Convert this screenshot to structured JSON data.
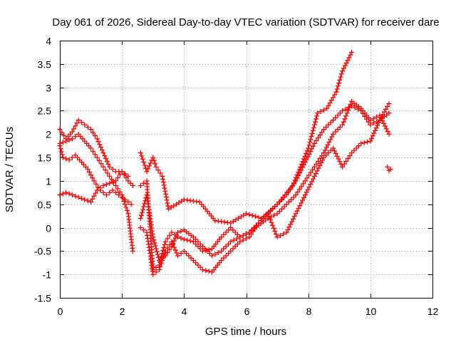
{
  "chart_data": {
    "type": "scatter",
    "title": "Day 061 of 2026, Sidereal Day-to-day VTEC variation (SDTVAR) for receiver dare",
    "xlabel": "GPS time / hours",
    "ylabel": "SDTVAR / TECUs",
    "xlim": [
      0,
      12
    ],
    "ylim": [
      -1.5,
      4
    ],
    "xticks": [
      0,
      2,
      4,
      6,
      8,
      10,
      12
    ],
    "yticks": [
      -1.5,
      -1,
      -0.5,
      0,
      0.5,
      1,
      1.5,
      2,
      2.5,
      3,
      3.5,
      4
    ],
    "grid": true,
    "marker": "+",
    "marker_color": "#ff0000",
    "series": [
      {
        "x": [
          0.0,
          0.2,
          0.4,
          0.6,
          0.8,
          1.0,
          1.2,
          1.4,
          1.6,
          1.8,
          2.0,
          2.2,
          2.35
        ],
        "y": [
          2.1,
          1.9,
          2.05,
          2.3,
          2.2,
          2.1,
          1.9,
          1.6,
          1.3,
          1.2,
          1.2,
          1.0,
          0.9
        ]
      },
      {
        "x": [
          0.0,
          0.2,
          0.4,
          0.6,
          0.8,
          1.0,
          1.2,
          1.4,
          1.6,
          1.8,
          2.0,
          2.2,
          2.35
        ],
        "y": [
          1.8,
          1.85,
          1.9,
          2.0,
          1.85,
          1.7,
          1.5,
          1.3,
          1.1,
          0.9,
          0.7,
          0.3,
          -0.5
        ]
      },
      {
        "x": [
          0.0,
          0.2,
          0.4,
          0.6,
          0.8,
          1.0,
          1.2,
          1.4,
          1.6,
          1.8,
          2.0,
          2.2
        ],
        "y": [
          0.7,
          0.75,
          0.7,
          0.65,
          0.6,
          0.55,
          0.8,
          0.9,
          0.95,
          1.0,
          1.2,
          1.1
        ]
      },
      {
        "x": [
          0.0,
          0.1,
          0.3,
          0.5,
          0.7,
          0.9,
          1.1,
          1.3,
          1.5,
          1.7,
          1.9,
          2.1,
          2.3
        ],
        "y": [
          1.75,
          1.5,
          1.45,
          1.55,
          1.4,
          1.25,
          1.0,
          0.8,
          0.7,
          0.8,
          0.7,
          0.6,
          0.5
        ]
      },
      {
        "x": [
          2.6,
          2.8,
          3.0,
          3.1,
          3.3,
          3.5,
          4.0,
          4.5,
          5.0,
          5.5,
          6.0,
          6.5,
          7.0,
          7.5,
          8.0,
          8.3,
          8.6,
          8.9,
          9.1,
          9.4
        ],
        "y": [
          1.6,
          1.2,
          1.5,
          1.3,
          1.1,
          0.4,
          0.6,
          0.55,
          0.15,
          0.1,
          0.3,
          0.2,
          0.5,
          0.9,
          1.7,
          2.45,
          2.55,
          2.9,
          3.35,
          3.75
        ]
      },
      {
        "x": [
          2.6,
          2.8,
          3.0,
          3.2,
          3.4,
          3.6,
          3.8,
          4.0,
          4.3,
          4.6,
          4.9,
          5.2,
          5.5,
          5.8,
          6.1,
          6.4,
          6.7,
          7.0,
          7.3,
          7.6,
          7.9,
          8.2,
          8.5,
          8.8,
          9.1,
          9.4,
          9.7,
          10.0,
          10.3,
          10.6
        ],
        "y": [
          0.9,
          1.0,
          -0.9,
          -0.8,
          -0.3,
          -0.1,
          -0.2,
          -0.25,
          -0.3,
          -0.5,
          -0.45,
          -0.2,
          0.0,
          -0.2,
          -0.1,
          0.1,
          0.3,
          0.5,
          0.7,
          1.0,
          1.4,
          1.8,
          2.1,
          2.3,
          2.5,
          2.6,
          2.5,
          2.2,
          2.3,
          2.65
        ]
      },
      {
        "x": [
          2.6,
          2.8,
          3.0,
          3.2,
          3.4,
          3.6,
          3.8,
          4.0,
          4.3,
          4.6,
          4.9,
          5.2,
          5.5,
          5.8,
          6.1,
          6.4,
          6.7,
          7.0,
          7.3,
          7.6,
          7.9,
          8.2,
          8.5,
          8.8,
          9.1,
          9.4,
          9.7,
          10.0,
          10.3,
          10.6
        ],
        "y": [
          0.2,
          0.7,
          -0.2,
          -0.7,
          -0.6,
          -0.4,
          -0.1,
          -0.05,
          -0.2,
          -0.4,
          -0.6,
          -0.5,
          -0.3,
          -0.2,
          -0.1,
          0.05,
          0.2,
          0.3,
          0.5,
          0.7,
          1.0,
          1.3,
          1.6,
          2.0,
          2.2,
          2.7,
          2.55,
          2.3,
          2.4,
          2.0
        ]
      },
      {
        "x": [
          2.6,
          2.8,
          3.0,
          3.2,
          3.4,
          3.6,
          3.8,
          4.0,
          4.3,
          4.6,
          4.9,
          5.2,
          5.5,
          5.8,
          6.1,
          6.4,
          6.7,
          7.0,
          7.3,
          7.6,
          7.9,
          8.2,
          8.5,
          8.8,
          9.1,
          9.4,
          9.7,
          10.0,
          10.3,
          10.6
        ],
        "y": [
          0.0,
          -0.1,
          -1.0,
          -0.9,
          -0.5,
          -0.3,
          -0.6,
          -0.5,
          -0.7,
          -0.9,
          -0.95,
          -0.7,
          -0.5,
          -0.3,
          -0.2,
          0.1,
          0.3,
          -0.2,
          -0.1,
          0.3,
          0.7,
          1.1,
          1.5,
          1.7,
          1.3,
          1.6,
          1.8,
          1.85,
          2.3,
          2.45
        ]
      },
      {
        "x": [
          10.55,
          10.6,
          10.65
        ],
        "y": [
          1.3,
          1.22,
          1.25
        ]
      }
    ]
  }
}
